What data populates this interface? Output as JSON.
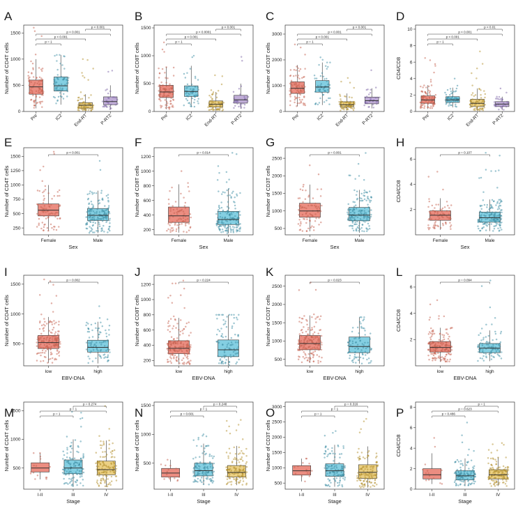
{
  "figure": {
    "colors": {
      "red": "#E8796B",
      "blue": "#6EC7DD",
      "yellow": "#E8C86E",
      "purple": "#B59FD0",
      "point_red": "#C6614F",
      "point_blue": "#3E8FA5",
      "point_yellow": "#B4902E",
      "point_purple": "#7E66A8"
    }
  },
  "chart_data": [
    {
      "panel": "A",
      "type": "boxplot",
      "ylabel": "Number of CD4T cells",
      "xlabel": "",
      "categories": [
        "Pre",
        "IC2",
        "End-RT",
        "P-RT2"
      ],
      "rotate_x": true,
      "ylim": [
        0,
        1650
      ],
      "yticks": [
        0,
        500,
        1000,
        1500
      ],
      "boxes": [
        {
          "q1": 330,
          "median": 470,
          "q3": 600,
          "low": 60,
          "high": 1000,
          "max": 1600,
          "color": "red",
          "n": 90
        },
        {
          "q1": 390,
          "median": 490,
          "q3": 660,
          "low": 130,
          "high": 1080,
          "max": 1080,
          "color": "blue",
          "n": 60
        },
        {
          "q1": 65,
          "median": 120,
          "q3": 170,
          "low": 10,
          "high": 330,
          "max": 1000,
          "color": "yellow",
          "n": 70
        },
        {
          "q1": 130,
          "median": 190,
          "q3": 280,
          "low": 40,
          "high": 500,
          "max": 780,
          "color": "purple",
          "n": 30
        }
      ],
      "comparisons": [
        {
          "a": 0,
          "b": 1,
          "label": "p = 1"
        },
        {
          "a": 0,
          "b": 2,
          "label": "p < 0.001"
        },
        {
          "a": 0,
          "b": 3,
          "label": "p < 0.001"
        },
        {
          "a": 2,
          "b": 3,
          "label": "p < 0.001"
        }
      ]
    },
    {
      "panel": "B",
      "type": "boxplot",
      "ylabel": "Number of CD8T cells",
      "xlabel": "",
      "categories": [
        "Pre",
        "IC2",
        "End-RT",
        "P-RT2"
      ],
      "rotate_x": true,
      "ylim": [
        0,
        1550
      ],
      "yticks": [
        0,
        500,
        1000,
        1500
      ],
      "boxes": [
        {
          "q1": 250,
          "median": 350,
          "q3": 470,
          "low": 40,
          "high": 800,
          "max": 1240,
          "color": "red",
          "n": 90
        },
        {
          "q1": 270,
          "median": 360,
          "q3": 460,
          "low": 80,
          "high": 820,
          "max": 1000,
          "color": "blue",
          "n": 60
        },
        {
          "q1": 80,
          "median": 130,
          "q3": 190,
          "low": 15,
          "high": 350,
          "max": 650,
          "color": "yellow",
          "n": 70
        },
        {
          "q1": 150,
          "median": 210,
          "q3": 290,
          "low": 50,
          "high": 500,
          "max": 980,
          "color": "purple",
          "n": 30
        }
      ],
      "comparisons": [
        {
          "a": 0,
          "b": 1,
          "label": "p = 1"
        },
        {
          "a": 0,
          "b": 2,
          "label": "p < 0.001"
        },
        {
          "a": 0,
          "b": 3,
          "label": "p < 0.0001"
        },
        {
          "a": 2,
          "b": 3,
          "label": "p < 0.001"
        }
      ]
    },
    {
      "panel": "C",
      "type": "boxplot",
      "ylabel": "Number of CD3T cells",
      "xlabel": "",
      "categories": [
        "Pre",
        "IC2",
        "End-RT",
        "P-RT2"
      ],
      "rotate_x": true,
      "ylim": [
        0,
        3350
      ],
      "yticks": [
        0,
        1000,
        2000,
        3000
      ],
      "boxes": [
        {
          "q1": 700,
          "median": 900,
          "q3": 1150,
          "low": 200,
          "high": 1800,
          "max": 2600,
          "color": "red",
          "n": 90
        },
        {
          "q1": 750,
          "median": 950,
          "q3": 1200,
          "low": 250,
          "high": 1900,
          "max": 2100,
          "color": "blue",
          "n": 60
        },
        {
          "q1": 180,
          "median": 260,
          "q3": 380,
          "low": 40,
          "high": 700,
          "max": 1300,
          "color": "yellow",
          "n": 70
        },
        {
          "q1": 300,
          "median": 420,
          "q3": 560,
          "low": 120,
          "high": 900,
          "max": 1600,
          "color": "purple",
          "n": 30
        }
      ],
      "comparisons": [
        {
          "a": 0,
          "b": 1,
          "label": "p = 1"
        },
        {
          "a": 0,
          "b": 2,
          "label": "p < 0.001"
        },
        {
          "a": 0,
          "b": 3,
          "label": "p < 0.001"
        },
        {
          "a": 2,
          "b": 3,
          "label": "p < 0.001"
        }
      ]
    },
    {
      "panel": "D",
      "type": "boxplot",
      "ylabel": "CD4/CD8",
      "xlabel": "",
      "categories": [
        "Pre",
        "IC2",
        "End-RT",
        "P-RT2"
      ],
      "rotate_x": true,
      "ylim": [
        0,
        10.5
      ],
      "yticks": [
        0,
        2,
        4,
        6,
        8,
        10
      ],
      "boxes": [
        {
          "q1": 1.0,
          "median": 1.4,
          "q3": 1.9,
          "low": 0.3,
          "high": 3.2,
          "max": 6.5,
          "color": "red",
          "n": 90
        },
        {
          "q1": 1.1,
          "median": 1.4,
          "q3": 1.8,
          "low": 0.5,
          "high": 2.9,
          "max": 4.0,
          "color": "blue",
          "n": 60
        },
        {
          "q1": 0.6,
          "median": 1.0,
          "q3": 1.5,
          "low": 0.1,
          "high": 2.8,
          "max": 7.3,
          "color": "yellow",
          "n": 70
        },
        {
          "q1": 0.6,
          "median": 0.9,
          "q3": 1.2,
          "low": 0.2,
          "high": 1.8,
          "max": 2.8,
          "color": "purple",
          "n": 30
        }
      ],
      "comparisons": [
        {
          "a": 0,
          "b": 1,
          "label": "p = 1"
        },
        {
          "a": 0,
          "b": 2,
          "label": "p < 0.001"
        },
        {
          "a": 0,
          "b": 3,
          "label": "p < 0.001"
        },
        {
          "a": 2,
          "b": 3,
          "label": "p < 0.01"
        }
      ]
    },
    {
      "panel": "E",
      "type": "boxplot",
      "ylabel": "Number of CD4T cells",
      "xlabel": "Sex",
      "categories": [
        "Female",
        "Male"
      ],
      "rotate_x": false,
      "ylim": [
        130,
        1650
      ],
      "yticks": [
        250,
        500,
        750,
        1000,
        1250,
        1500
      ],
      "boxes": [
        {
          "q1": 460,
          "median": 560,
          "q3": 670,
          "low": 200,
          "high": 1000,
          "max": 1580,
          "color": "red",
          "n": 80
        },
        {
          "q1": 380,
          "median": 470,
          "q3": 590,
          "low": 160,
          "high": 900,
          "max": 1420,
          "color": "blue",
          "n": 160
        }
      ],
      "comparisons": [
        {
          "a": 0,
          "b": 1,
          "label": "p < 0.001"
        }
      ]
    },
    {
      "panel": "F",
      "type": "boxplot",
      "ylabel": "Number of CD8T cells",
      "xlabel": "Sex",
      "categories": [
        "Female",
        "Male"
      ],
      "rotate_x": false,
      "ylim": [
        130,
        1320
      ],
      "yticks": [
        200,
        400,
        600,
        800,
        1000,
        1200
      ],
      "boxes": [
        {
          "q1": 300,
          "median": 390,
          "q3": 510,
          "low": 160,
          "high": 820,
          "max": 1000,
          "color": "red",
          "n": 80
        },
        {
          "q1": 270,
          "median": 340,
          "q3": 450,
          "low": 150,
          "high": 760,
          "max": 1250,
          "color": "blue",
          "n": 160
        }
      ],
      "comparisons": [
        {
          "a": 0,
          "b": 1,
          "label": "p = 0.014"
        }
      ]
    },
    {
      "panel": "G",
      "type": "boxplot",
      "ylabel": "Number of CD3T cells",
      "xlabel": "Sex",
      "categories": [
        "Female",
        "Male"
      ],
      "rotate_x": false,
      "ylim": [
        320,
        2800
      ],
      "yticks": [
        500,
        1000,
        1500,
        2000,
        2500
      ],
      "boxes": [
        {
          "q1": 820,
          "median": 1000,
          "q3": 1220,
          "low": 420,
          "high": 1750,
          "max": 2300,
          "color": "red",
          "n": 80
        },
        {
          "q1": 720,
          "median": 880,
          "q3": 1100,
          "low": 380,
          "high": 1600,
          "max": 2650,
          "color": "blue",
          "n": 160
        }
      ],
      "comparisons": [
        {
          "a": 0,
          "b": 1,
          "label": "p = 0.001"
        }
      ]
    },
    {
      "panel": "H",
      "type": "boxplot",
      "ylabel": "CD4/CD8",
      "xlabel": "Sex",
      "categories": [
        "Female",
        "Male"
      ],
      "rotate_x": false,
      "ylim": [
        0,
        6.9
      ],
      "yticks": [
        2,
        4,
        6
      ],
      "boxes": [
        {
          "q1": 1.15,
          "median": 1.55,
          "q3": 1.9,
          "low": 0.4,
          "high": 2.9,
          "max": 5.0,
          "color": "red",
          "n": 80
        },
        {
          "q1": 1.0,
          "median": 1.35,
          "q3": 1.8,
          "low": 0.3,
          "high": 2.8,
          "max": 6.5,
          "color": "blue",
          "n": 160
        }
      ],
      "comparisons": [
        {
          "a": 0,
          "b": 1,
          "label": "p = 0.107"
        }
      ]
    },
    {
      "panel": "I",
      "type": "boxplot",
      "ylabel": "Number of CD4T cells",
      "xlabel": "EBV-DNA",
      "categories": [
        "low",
        "high"
      ],
      "rotate_x": false,
      "ylim": [
        130,
        1650
      ],
      "yticks": [
        500,
        1000,
        1500
      ],
      "boxes": [
        {
          "q1": 420,
          "median": 520,
          "q3": 640,
          "low": 180,
          "high": 950,
          "max": 1580,
          "color": "red",
          "n": 170
        },
        {
          "q1": 360,
          "median": 440,
          "q3": 560,
          "low": 170,
          "high": 870,
          "max": 1130,
          "color": "blue",
          "n": 90
        }
      ],
      "comparisons": [
        {
          "a": 0,
          "b": 1,
          "label": "p = 0.002"
        }
      ]
    },
    {
      "panel": "J",
      "type": "boxplot",
      "ylabel": "Number of CD8T cells",
      "xlabel": "EBV-DNA",
      "categories": [
        "low",
        "high"
      ],
      "rotate_x": false,
      "ylim": [
        130,
        1320
      ],
      "yticks": [
        200,
        400,
        600,
        800,
        1000,
        1200
      ],
      "boxes": [
        {
          "q1": 290,
          "median": 360,
          "q3": 460,
          "low": 150,
          "high": 760,
          "max": 1250,
          "color": "red",
          "n": 170
        },
        {
          "q1": 250,
          "median": 340,
          "q3": 470,
          "low": 140,
          "high": 800,
          "max": 800,
          "color": "blue",
          "n": 90
        }
      ],
      "comparisons": [
        {
          "a": 0,
          "b": 1,
          "label": "p = 0.224"
        }
      ]
    },
    {
      "panel": "K",
      "type": "boxplot",
      "ylabel": "Number of CD3T cells",
      "xlabel": "EBV-DNA",
      "categories": [
        "low",
        "high"
      ],
      "rotate_x": false,
      "ylim": [
        320,
        2800
      ],
      "yticks": [
        500,
        1000,
        1500,
        2000,
        2500
      ],
      "boxes": [
        {
          "q1": 760,
          "median": 930,
          "q3": 1150,
          "low": 400,
          "high": 1700,
          "max": 2600,
          "color": "red",
          "n": 170
        },
        {
          "q1": 680,
          "median": 850,
          "q3": 1110,
          "low": 380,
          "high": 1650,
          "max": 1650,
          "color": "blue",
          "n": 90
        }
      ],
      "comparisons": [
        {
          "a": 0,
          "b": 1,
          "label": "p = 0.023"
        }
      ]
    },
    {
      "panel": "L",
      "type": "boxplot",
      "ylabel": "CD4/CD8",
      "xlabel": "EBV-DNA",
      "categories": [
        "low",
        "high"
      ],
      "rotate_x": false,
      "ylim": [
        0,
        6.9
      ],
      "yticks": [
        2,
        4,
        6
      ],
      "boxes": [
        {
          "q1": 1.05,
          "median": 1.4,
          "q3": 1.85,
          "low": 0.3,
          "high": 2.9,
          "max": 5.0,
          "color": "red",
          "n": 170
        },
        {
          "q1": 1.0,
          "median": 1.35,
          "q3": 1.7,
          "low": 0.35,
          "high": 2.7,
          "max": 6.5,
          "color": "blue",
          "n": 90
        }
      ],
      "comparisons": [
        {
          "a": 0,
          "b": 1,
          "label": "p = 0.094"
        }
      ]
    },
    {
      "panel": "M",
      "type": "boxplot",
      "ylabel": "Number of CD4T cells",
      "xlabel": "Stage",
      "categories": [
        "I-II",
        "III",
        "IV"
      ],
      "rotate_x": false,
      "ylim": [
        130,
        1650
      ],
      "yticks": [
        500,
        1000,
        1500
      ],
      "boxes": [
        {
          "q1": 430,
          "median": 500,
          "q3": 590,
          "low": 300,
          "high": 760,
          "max": 760,
          "color": "red",
          "n": 14
        },
        {
          "q1": 400,
          "median": 500,
          "q3": 640,
          "low": 180,
          "high": 1000,
          "max": 1480,
          "color": "blue",
          "n": 120
        },
        {
          "q1": 380,
          "median": 470,
          "q3": 620,
          "low": 170,
          "high": 980,
          "max": 1580,
          "color": "yellow",
          "n": 130
        }
      ],
      "comparisons": [
        {
          "a": 0,
          "b": 1,
          "label": "p = 1"
        },
        {
          "a": 0,
          "b": 2,
          "label": "p = 1"
        },
        {
          "a": 1,
          "b": 2,
          "label": "p = 0.274"
        }
      ]
    },
    {
      "panel": "N",
      "type": "boxplot",
      "ylabel": "Number of CD8T cells",
      "xlabel": "Stage",
      "categories": [
        "I-II",
        "III",
        "IV"
      ],
      "rotate_x": false,
      "ylim": [
        50,
        1560
      ],
      "yticks": [
        500,
        1000,
        1500
      ],
      "boxes": [
        {
          "q1": 260,
          "median": 330,
          "q3": 410,
          "low": 180,
          "high": 560,
          "max": 560,
          "color": "red",
          "n": 14
        },
        {
          "q1": 280,
          "median": 370,
          "q3": 500,
          "low": 130,
          "high": 840,
          "max": 1000,
          "color": "blue",
          "n": 120
        },
        {
          "q1": 260,
          "median": 340,
          "q3": 460,
          "low": 120,
          "high": 800,
          "max": 1250,
          "color": "yellow",
          "n": 130
        }
      ],
      "comparisons": [
        {
          "a": 0,
          "b": 1,
          "label": "p = 0.601"
        },
        {
          "a": 0,
          "b": 2,
          "label": "p = 1"
        },
        {
          "a": 1,
          "b": 2,
          "label": "p = 0.248"
        }
      ]
    },
    {
      "panel": "O",
      "type": "boxplot",
      "ylabel": "Number of CD3T cells",
      "xlabel": "Stage",
      "categories": [
        "I-II",
        "III",
        "IV"
      ],
      "rotate_x": false,
      "ylim": [
        300,
        3150
      ],
      "yticks": [
        500,
        1000,
        1500,
        2000,
        2500,
        3000
      ],
      "boxes": [
        {
          "q1": 760,
          "median": 900,
          "q3": 1070,
          "low": 550,
          "high": 1300,
          "max": 1300,
          "color": "red",
          "n": 14
        },
        {
          "q1": 720,
          "median": 900,
          "q3": 1130,
          "low": 380,
          "high": 1750,
          "max": 2200,
          "color": "blue",
          "n": 120
        },
        {
          "q1": 650,
          "median": 850,
          "q3": 1100,
          "low": 350,
          "high": 1700,
          "max": 2600,
          "color": "yellow",
          "n": 130
        }
      ],
      "comparisons": [
        {
          "a": 0,
          "b": 1,
          "label": "p = 1"
        },
        {
          "a": 0,
          "b": 2,
          "label": "p = 1"
        },
        {
          "a": 1,
          "b": 2,
          "label": "p = 0.316"
        }
      ]
    },
    {
      "panel": "P",
      "type": "boxplot",
      "ylabel": "CD4/CD8",
      "xlabel": "Stage",
      "categories": [
        "I-II",
        "III",
        "IV"
      ],
      "rotate_x": false,
      "ylim": [
        0,
        8.5
      ],
      "yticks": [
        0,
        2,
        4,
        6,
        8
      ],
      "boxes": [
        {
          "q1": 1.0,
          "median": 1.4,
          "q3": 2.0,
          "low": 0.5,
          "high": 3.5,
          "max": 5.0,
          "color": "red",
          "n": 14
        },
        {
          "q1": 0.9,
          "median": 1.3,
          "q3": 1.8,
          "low": 0.3,
          "high": 3.0,
          "max": 6.5,
          "color": "blue",
          "n": 120
        },
        {
          "q1": 1.0,
          "median": 1.4,
          "q3": 1.9,
          "low": 0.3,
          "high": 3.1,
          "max": 4.5,
          "color": "yellow",
          "n": 130
        }
      ],
      "comparisons": [
        {
          "a": 0,
          "b": 1,
          "label": "p = 0.486"
        },
        {
          "a": 0,
          "b": 2,
          "label": "p = 0.623"
        },
        {
          "a": 1,
          "b": 2,
          "label": "p = 1"
        }
      ]
    }
  ]
}
